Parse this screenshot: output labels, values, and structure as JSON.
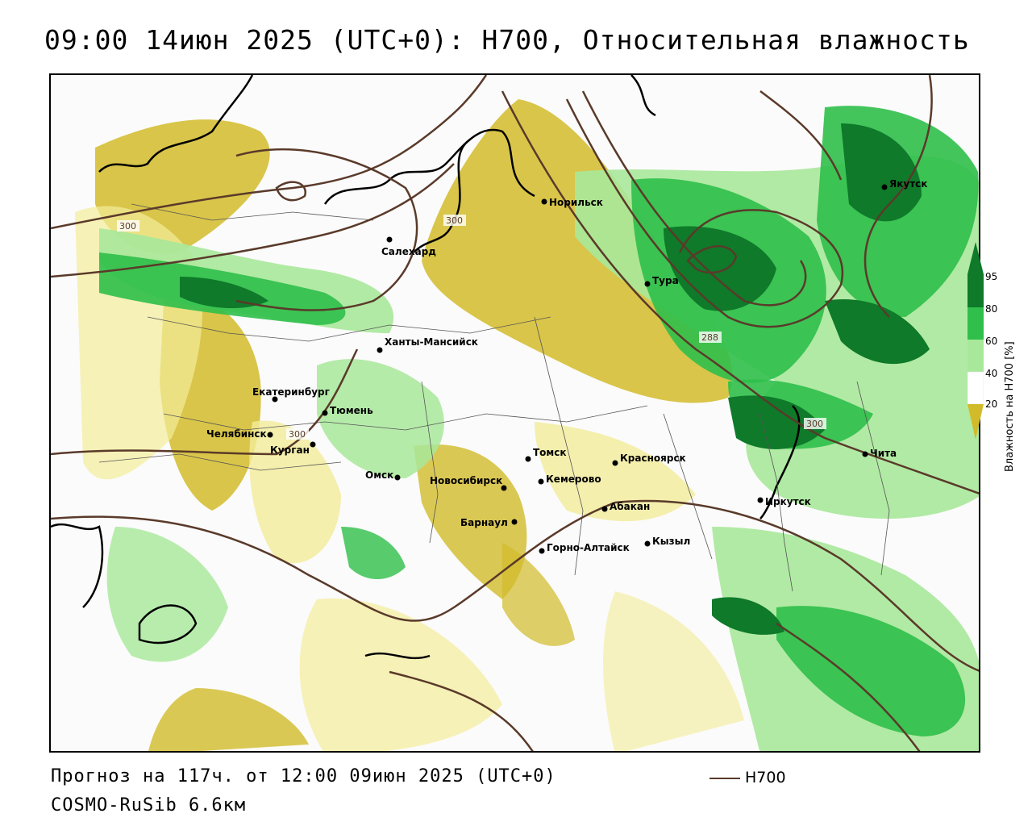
{
  "title": "09:00 14июн 2025 (UTC+0): H700, Относительная влажность",
  "footer": {
    "forecast": "Прогноз на 117ч. от 12:00 09июн 2025 (UTC+0)",
    "model": "COSMO-RuSib 6.6км"
  },
  "legend": {
    "line_label": "H700",
    "line_color": "#5a3a2a"
  },
  "colorbar": {
    "title": "Влажность на H700 [%]",
    "ticks": [
      "95",
      "80",
      "60",
      "40",
      "20"
    ],
    "colors": {
      "c95": "#0e7a2a",
      "c80": "#2fbf4a",
      "c60": "#a8e89a",
      "c40": "#ffffff",
      "c20": "#f3ec9a",
      "c0": "#d2bb2a"
    }
  },
  "cities": [
    {
      "name": "Якутск"
    },
    {
      "name": "Норильск"
    },
    {
      "name": "Салехард"
    },
    {
      "name": "Тура"
    },
    {
      "name": "Ханты-Мансийск"
    },
    {
      "name": "Екатеринбург"
    },
    {
      "name": "Тюмень"
    },
    {
      "name": "Челябинск"
    },
    {
      "name": "Курган"
    },
    {
      "name": "Омск"
    },
    {
      "name": "Новосибирск"
    },
    {
      "name": "Томск"
    },
    {
      "name": "Кемерово"
    },
    {
      "name": "Красноярск"
    },
    {
      "name": "Абакан"
    },
    {
      "name": "Барнаул"
    },
    {
      "name": "Горно-Алтайск"
    },
    {
      "name": "Кызыл"
    },
    {
      "name": "Иркутск"
    },
    {
      "name": "Чита"
    }
  ],
  "contour_labels": [
    "300",
    "300",
    "300",
    "288",
    "300"
  ]
}
